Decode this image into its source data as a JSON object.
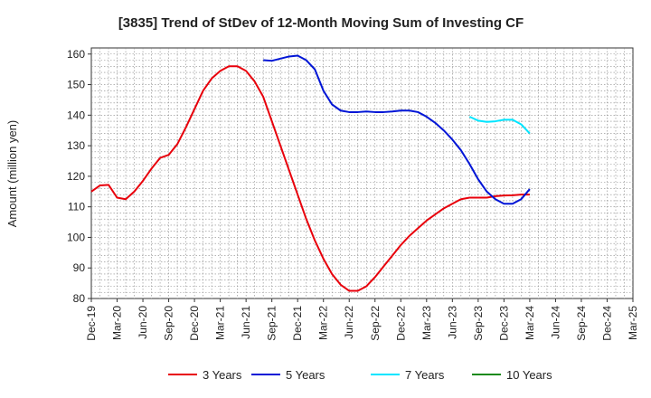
{
  "chart_data": {
    "type": "line",
    "title": "[3835]  Trend of StDev of 12-Month Moving Sum of Investing CF",
    "xlabel": "",
    "ylabel": "Amount (million yen)",
    "ylim": [
      80,
      162
    ],
    "yticks": [
      80,
      90,
      100,
      110,
      120,
      130,
      140,
      150,
      160
    ],
    "xlim": [
      "2019-12",
      "2025-03"
    ],
    "x_tick_labels": [
      "Dec-19",
      "Mar-20",
      "Jun-20",
      "Sep-20",
      "Dec-20",
      "Mar-21",
      "Jun-21",
      "Sep-21",
      "Dec-21",
      "Mar-22",
      "Jun-22",
      "Sep-22",
      "Dec-22",
      "Mar-23",
      "Jun-23",
      "Sep-23",
      "Dec-23",
      "Mar-24",
      "Jun-24",
      "Sep-24",
      "Dec-24",
      "Mar-25"
    ],
    "grid": true,
    "legend_position": "bottom",
    "series": [
      {
        "name": "3 Years",
        "color": "#e8000b",
        "x": [
          "2019-12",
          "2020-01",
          "2020-02",
          "2020-03",
          "2020-04",
          "2020-05",
          "2020-06",
          "2020-07",
          "2020-08",
          "2020-09",
          "2020-10",
          "2020-11",
          "2020-12",
          "2021-01",
          "2021-02",
          "2021-03",
          "2021-04",
          "2021-05",
          "2021-06",
          "2021-07",
          "2021-08",
          "2021-09",
          "2021-10",
          "2021-11",
          "2021-12",
          "2022-01",
          "2022-02",
          "2022-03",
          "2022-04",
          "2022-05",
          "2022-06",
          "2022-07",
          "2022-08",
          "2022-09",
          "2022-10",
          "2022-11",
          "2022-12",
          "2023-01",
          "2023-02",
          "2023-03",
          "2023-04",
          "2023-05",
          "2023-06",
          "2023-07",
          "2023-08",
          "2023-09",
          "2023-10",
          "2023-11",
          "2023-12",
          "2024-01",
          "2024-02",
          "2024-03"
        ],
        "values": [
          115,
          117,
          117.2,
          113,
          112.5,
          115,
          118.5,
          122.5,
          126,
          127,
          130.5,
          136,
          142,
          148,
          152,
          154.5,
          156,
          156,
          154.5,
          151,
          146,
          138,
          130,
          122,
          114,
          106,
          99,
          93,
          88,
          84.5,
          82.5,
          82.5,
          84,
          87,
          90.5,
          94,
          97.5,
          100.5,
          103,
          105.5,
          107.5,
          109.5,
          111,
          112.5,
          113,
          113,
          113,
          113.5,
          113.7,
          113.8,
          114,
          114
        ]
      },
      {
        "name": "5 Years",
        "color": "#0015d6",
        "x": [
          "2021-08",
          "2021-09",
          "2021-10",
          "2021-11",
          "2021-12",
          "2022-01",
          "2022-02",
          "2022-03",
          "2022-04",
          "2022-05",
          "2022-06",
          "2022-07",
          "2022-08",
          "2022-09",
          "2022-10",
          "2022-11",
          "2022-12",
          "2023-01",
          "2023-02",
          "2023-03",
          "2023-04",
          "2023-05",
          "2023-06",
          "2023-07",
          "2023-08",
          "2023-09",
          "2023-10",
          "2023-11",
          "2023-12",
          "2024-01",
          "2024-02",
          "2024-03"
        ],
        "values": [
          158,
          157.8,
          158.5,
          159.2,
          159.5,
          158,
          155,
          148,
          143.5,
          141.5,
          141,
          141,
          141.2,
          141,
          141,
          141.2,
          141.5,
          141.5,
          141,
          139.5,
          137.5,
          135,
          132,
          128.5,
          124,
          119,
          115,
          112.5,
          111,
          111,
          112.5,
          115.8
        ]
      },
      {
        "name": "7 Years",
        "color": "#00e5ff",
        "x": [
          "2023-08",
          "2023-09",
          "2023-10",
          "2023-11",
          "2023-12",
          "2024-01",
          "2024-02",
          "2024-03"
        ],
        "values": [
          139.5,
          138.2,
          137.8,
          138,
          138.5,
          138.5,
          137,
          134
        ]
      },
      {
        "name": "10 Years",
        "color": "#1a8a1a",
        "x": [],
        "values": []
      }
    ]
  }
}
